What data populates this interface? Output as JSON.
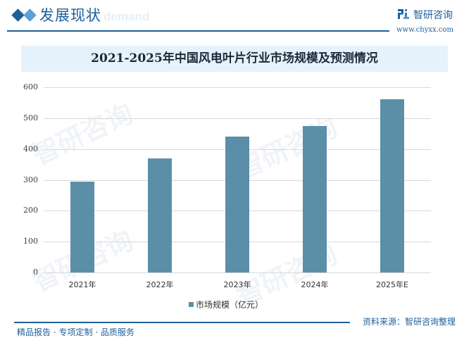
{
  "header": {
    "title": "发展现状",
    "ghost_text": "and demand",
    "logo_text": "智研咨询",
    "logo_url": "www.chyxx.com"
  },
  "chart_data": {
    "type": "bar",
    "title": "2021-2025年中国风电叶片行业市场规模及预测情况",
    "categories": [
      "2021年",
      "2022年",
      "2023年",
      "2024年",
      "2025年E"
    ],
    "series": [
      {
        "name": "市场规模（亿元）",
        "values": [
          294,
          370,
          441,
          475,
          562
        ],
        "color": "#5b8fa8"
      }
    ],
    "xlabel": "",
    "ylabel": "",
    "ylim": [
      0,
      600
    ],
    "yticks": [
      0,
      100,
      200,
      300,
      400,
      500,
      600
    ],
    "grid": true,
    "legend_position": "bottom"
  },
  "footer": {
    "left": "精品报告 · 专项定制 · 品质服务",
    "right": "资料来源：智研咨询整理"
  },
  "colors": {
    "brand": "#1f5f99",
    "bar": "#5b8fa8",
    "title_band": "#e6f2fb"
  }
}
